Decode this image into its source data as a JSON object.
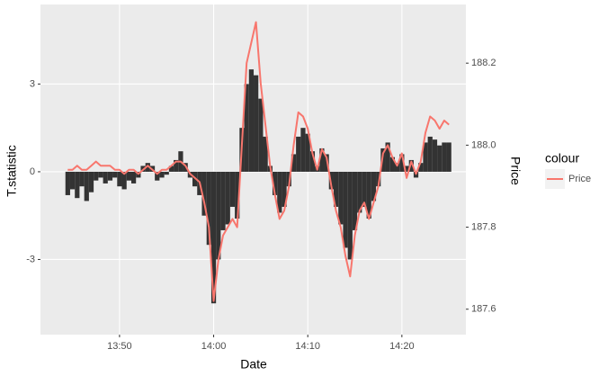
{
  "chart_data": {
    "type": "combo",
    "xlabel": "Date",
    "ylabel": "T.statistic",
    "y2label": "Price",
    "legend_title": "colour",
    "legend_position": "right",
    "grid": true,
    "x": [
      824.5,
      825,
      825.5,
      826,
      826.5,
      827,
      827.5,
      828,
      828.5,
      829,
      829.5,
      830,
      830.5,
      831,
      831.5,
      832,
      832.5,
      833,
      833.5,
      834,
      834.5,
      835,
      835.5,
      836,
      836.5,
      837,
      837.5,
      838,
      838.5,
      839,
      839.5,
      840,
      840.5,
      841,
      841.5,
      842,
      842.5,
      843,
      843.5,
      844,
      844.5,
      845,
      845.5,
      846,
      846.5,
      847,
      847.5,
      848,
      848.5,
      849,
      849.5,
      850,
      850.5,
      851,
      851.5,
      852,
      852.5,
      853,
      853.5,
      854,
      854.5,
      855,
      855.5,
      856,
      856.5,
      857,
      857.5,
      858,
      858.5,
      859,
      859.5,
      860,
      860.5,
      861,
      861.5,
      862,
      862.5,
      863,
      863.5,
      864,
      864.5,
      865
    ],
    "xlim": [
      821.6,
      866.8
    ],
    "xticks": [
      {
        "value": 830,
        "label": "13:50"
      },
      {
        "value": 840,
        "label": "14:00"
      },
      {
        "value": 850,
        "label": "14:10"
      },
      {
        "value": 860,
        "label": "14:20"
      }
    ],
    "ylim": [
      -5.57,
      5.72
    ],
    "yticks": [
      -3,
      0,
      3
    ],
    "y2lim": [
      187.538,
      188.343
    ],
    "y2ticks": [
      187.6,
      187.8,
      {
        "value": 188.0,
        "label": "188.0"
      },
      188.2
    ],
    "series": [
      {
        "type": "bar",
        "color": "#333333",
        "values": [
          -0.8,
          -0.6,
          -0.9,
          -0.5,
          -1.0,
          -0.7,
          -0.3,
          -0.2,
          -0.4,
          -0.3,
          -0.2,
          -0.5,
          -0.6,
          -0.3,
          -0.4,
          -0.2,
          0.2,
          0.3,
          0.2,
          -0.3,
          -0.2,
          -0.1,
          0.2,
          0.4,
          0.7,
          0.3,
          -0.2,
          -0.5,
          -0.8,
          -1.5,
          -2.5,
          -4.5,
          -3.0,
          -2.0,
          -1.8,
          -1.2,
          -1.6,
          1.5,
          3.0,
          3.5,
          3.3,
          2.5,
          1.2,
          0.2,
          -0.8,
          -1.4,
          -1.2,
          -0.5,
          0.6,
          1.2,
          1.5,
          1.3,
          0.7,
          0.2,
          0.8,
          0.6,
          -0.6,
          -1.2,
          -1.8,
          -2.6,
          -3.0,
          -2.0,
          -1.4,
          -1.2,
          -1.6,
          -1.0,
          -0.5,
          0.8,
          1.0,
          0.5,
          0.3,
          0.6,
          0.2,
          0.4,
          -0.2,
          0.3,
          1.0,
          1.2,
          1.1,
          0.9,
          1.0,
          1.0
        ]
      },
      {
        "name": "Price",
        "type": "line",
        "axis": "y2",
        "color": "#F8766D",
        "values": [
          187.94,
          187.94,
          187.95,
          187.94,
          187.94,
          187.95,
          187.96,
          187.95,
          187.95,
          187.95,
          187.94,
          187.94,
          187.93,
          187.94,
          187.94,
          187.93,
          187.94,
          187.95,
          187.94,
          187.93,
          187.94,
          187.94,
          187.95,
          187.96,
          187.96,
          187.95,
          187.93,
          187.92,
          187.91,
          187.86,
          187.8,
          187.62,
          187.72,
          187.78,
          187.8,
          187.82,
          187.8,
          188.0,
          188.2,
          188.25,
          188.3,
          188.15,
          188.05,
          187.95,
          187.88,
          187.82,
          187.84,
          187.9,
          188.0,
          188.08,
          188.07,
          188.04,
          187.98,
          187.94,
          187.99,
          187.97,
          187.9,
          187.84,
          187.8,
          187.73,
          187.68,
          187.78,
          187.84,
          187.86,
          187.82,
          187.86,
          187.9,
          187.98,
          188.0,
          187.97,
          187.95,
          187.98,
          187.92,
          187.96,
          187.93,
          187.96,
          188.03,
          188.07,
          188.06,
          188.04,
          188.06,
          188.05
        ]
      }
    ]
  }
}
